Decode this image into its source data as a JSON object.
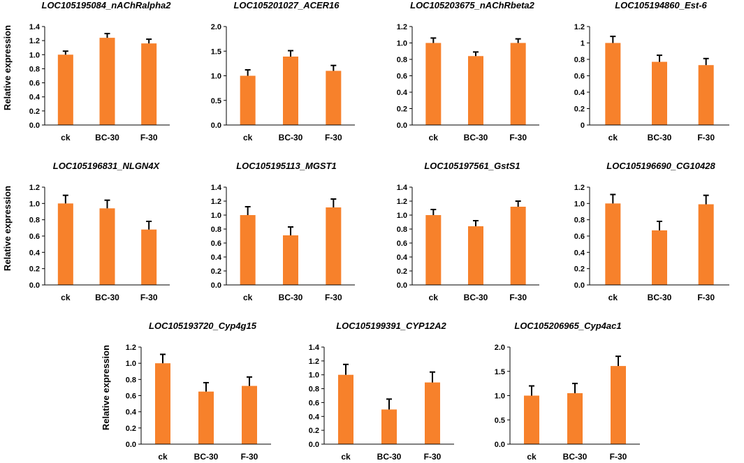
{
  "y_axis_title": "Relative expression",
  "bar_color": "#f7812b",
  "errorbar_color": "#000000",
  "chart_data": [
    {
      "type": "bar",
      "title": "LOC105195084_nAChRalpha2",
      "categories": [
        "ck",
        "BC-30",
        "F-30"
      ],
      "values": [
        1.0,
        1.24,
        1.16
      ],
      "errors": [
        0.05,
        0.06,
        0.06
      ],
      "ylim": [
        0,
        1.4
      ],
      "yticks": [
        "0.0",
        "0.2",
        "0.4",
        "0.6",
        "0.8",
        "1.0",
        "1.2",
        "1.4"
      ]
    },
    {
      "type": "bar",
      "title": "LOC105201027_ACER16",
      "categories": [
        "ck",
        "BC-30",
        "F-30"
      ],
      "values": [
        1.0,
        1.39,
        1.1
      ],
      "errors": [
        0.12,
        0.12,
        0.11
      ],
      "ylim": [
        0,
        2.0
      ],
      "yticks": [
        "0.0",
        "0.5",
        "1.0",
        "1.5",
        "2.0"
      ]
    },
    {
      "type": "bar",
      "title": "LOC105203675_nAChRbeta2",
      "categories": [
        "ck",
        "BC-30",
        "F-30"
      ],
      "values": [
        1.0,
        0.84,
        1.0
      ],
      "errors": [
        0.06,
        0.05,
        0.05
      ],
      "ylim": [
        0,
        1.2
      ],
      "yticks": [
        "0.0",
        "0.2",
        "0.4",
        "0.6",
        "0.8",
        "1.0",
        "1.2"
      ]
    },
    {
      "type": "bar",
      "title": "LOC105194860_Est-6",
      "categories": [
        "ck",
        "BC-30",
        "F-30"
      ],
      "values": [
        1.0,
        0.77,
        0.73
      ],
      "errors": [
        0.08,
        0.08,
        0.08
      ],
      "ylim": [
        0,
        1.2
      ],
      "yticks": [
        "0",
        "0.2",
        "0.4",
        "0.6",
        "0.8",
        "1",
        "1.2"
      ]
    },
    {
      "type": "bar",
      "title": "LOC105196831_NLGN4X",
      "categories": [
        "ck",
        "BC-30",
        "F-30"
      ],
      "values": [
        1.0,
        0.94,
        0.68
      ],
      "errors": [
        0.1,
        0.1,
        0.1
      ],
      "ylim": [
        0,
        1.2
      ],
      "yticks": [
        "0.0",
        "0.2",
        "0.4",
        "0.6",
        "0.8",
        "1.0",
        "1.2"
      ]
    },
    {
      "type": "bar",
      "title": "LOC105195113_MGST1",
      "categories": [
        "ck",
        "BC-30",
        "F-30"
      ],
      "values": [
        1.0,
        0.71,
        1.11
      ],
      "errors": [
        0.12,
        0.12,
        0.12
      ],
      "ylim": [
        0,
        1.4
      ],
      "yticks": [
        "0.0",
        "0.2",
        "0.4",
        "0.6",
        "0.8",
        "1.0",
        "1.2",
        "1.4"
      ]
    },
    {
      "type": "bar",
      "title": "LOC105197561_GstS1",
      "categories": [
        "ck",
        "BC-30",
        "F-30"
      ],
      "values": [
        1.0,
        0.84,
        1.12
      ],
      "errors": [
        0.08,
        0.08,
        0.08
      ],
      "ylim": [
        0,
        1.4
      ],
      "yticks": [
        "0.0",
        "0.2",
        "0.4",
        "0.6",
        "0.8",
        "1.0",
        "1.2",
        "1.4"
      ]
    },
    {
      "type": "bar",
      "title": "LOC105196690_CG10428",
      "categories": [
        "ck",
        "BC-30",
        "F-30"
      ],
      "values": [
        1.0,
        0.67,
        0.99
      ],
      "errors": [
        0.11,
        0.11,
        0.11
      ],
      "ylim": [
        0,
        1.2
      ],
      "yticks": [
        "0.0",
        "0.2",
        "0.4",
        "0.6",
        "0.8",
        "1.0",
        "1.2"
      ]
    },
    {
      "type": "bar",
      "title": "LOC105193720_Cyp4g15",
      "categories": [
        "ck",
        "BC-30",
        "F-30"
      ],
      "values": [
        1.0,
        0.65,
        0.72
      ],
      "errors": [
        0.11,
        0.11,
        0.11
      ],
      "ylim": [
        0,
        1.2
      ],
      "yticks": [
        "0.0",
        "0.2",
        "0.4",
        "0.6",
        "0.8",
        "1.0",
        "1.2"
      ]
    },
    {
      "type": "bar",
      "title": "LOC105199391_CYP12A2",
      "categories": [
        "ck",
        "BC-30",
        "F-30"
      ],
      "values": [
        1.0,
        0.5,
        0.89
      ],
      "errors": [
        0.15,
        0.15,
        0.15
      ],
      "ylim": [
        0,
        1.4
      ],
      "yticks": [
        "0.0",
        "0.2",
        "0.4",
        "0.6",
        "0.8",
        "1.0",
        "1.2",
        "1.4"
      ]
    },
    {
      "type": "bar",
      "title": "LOC105206965_Cyp4ac1",
      "categories": [
        "ck",
        "BC-30",
        "F-30"
      ],
      "values": [
        1.0,
        1.05,
        1.61
      ],
      "errors": [
        0.2,
        0.2,
        0.2
      ],
      "ylim": [
        0,
        2.0
      ],
      "yticks": [
        "0.0",
        "0.5",
        "1.0",
        "1.5",
        "2.0"
      ]
    }
  ]
}
